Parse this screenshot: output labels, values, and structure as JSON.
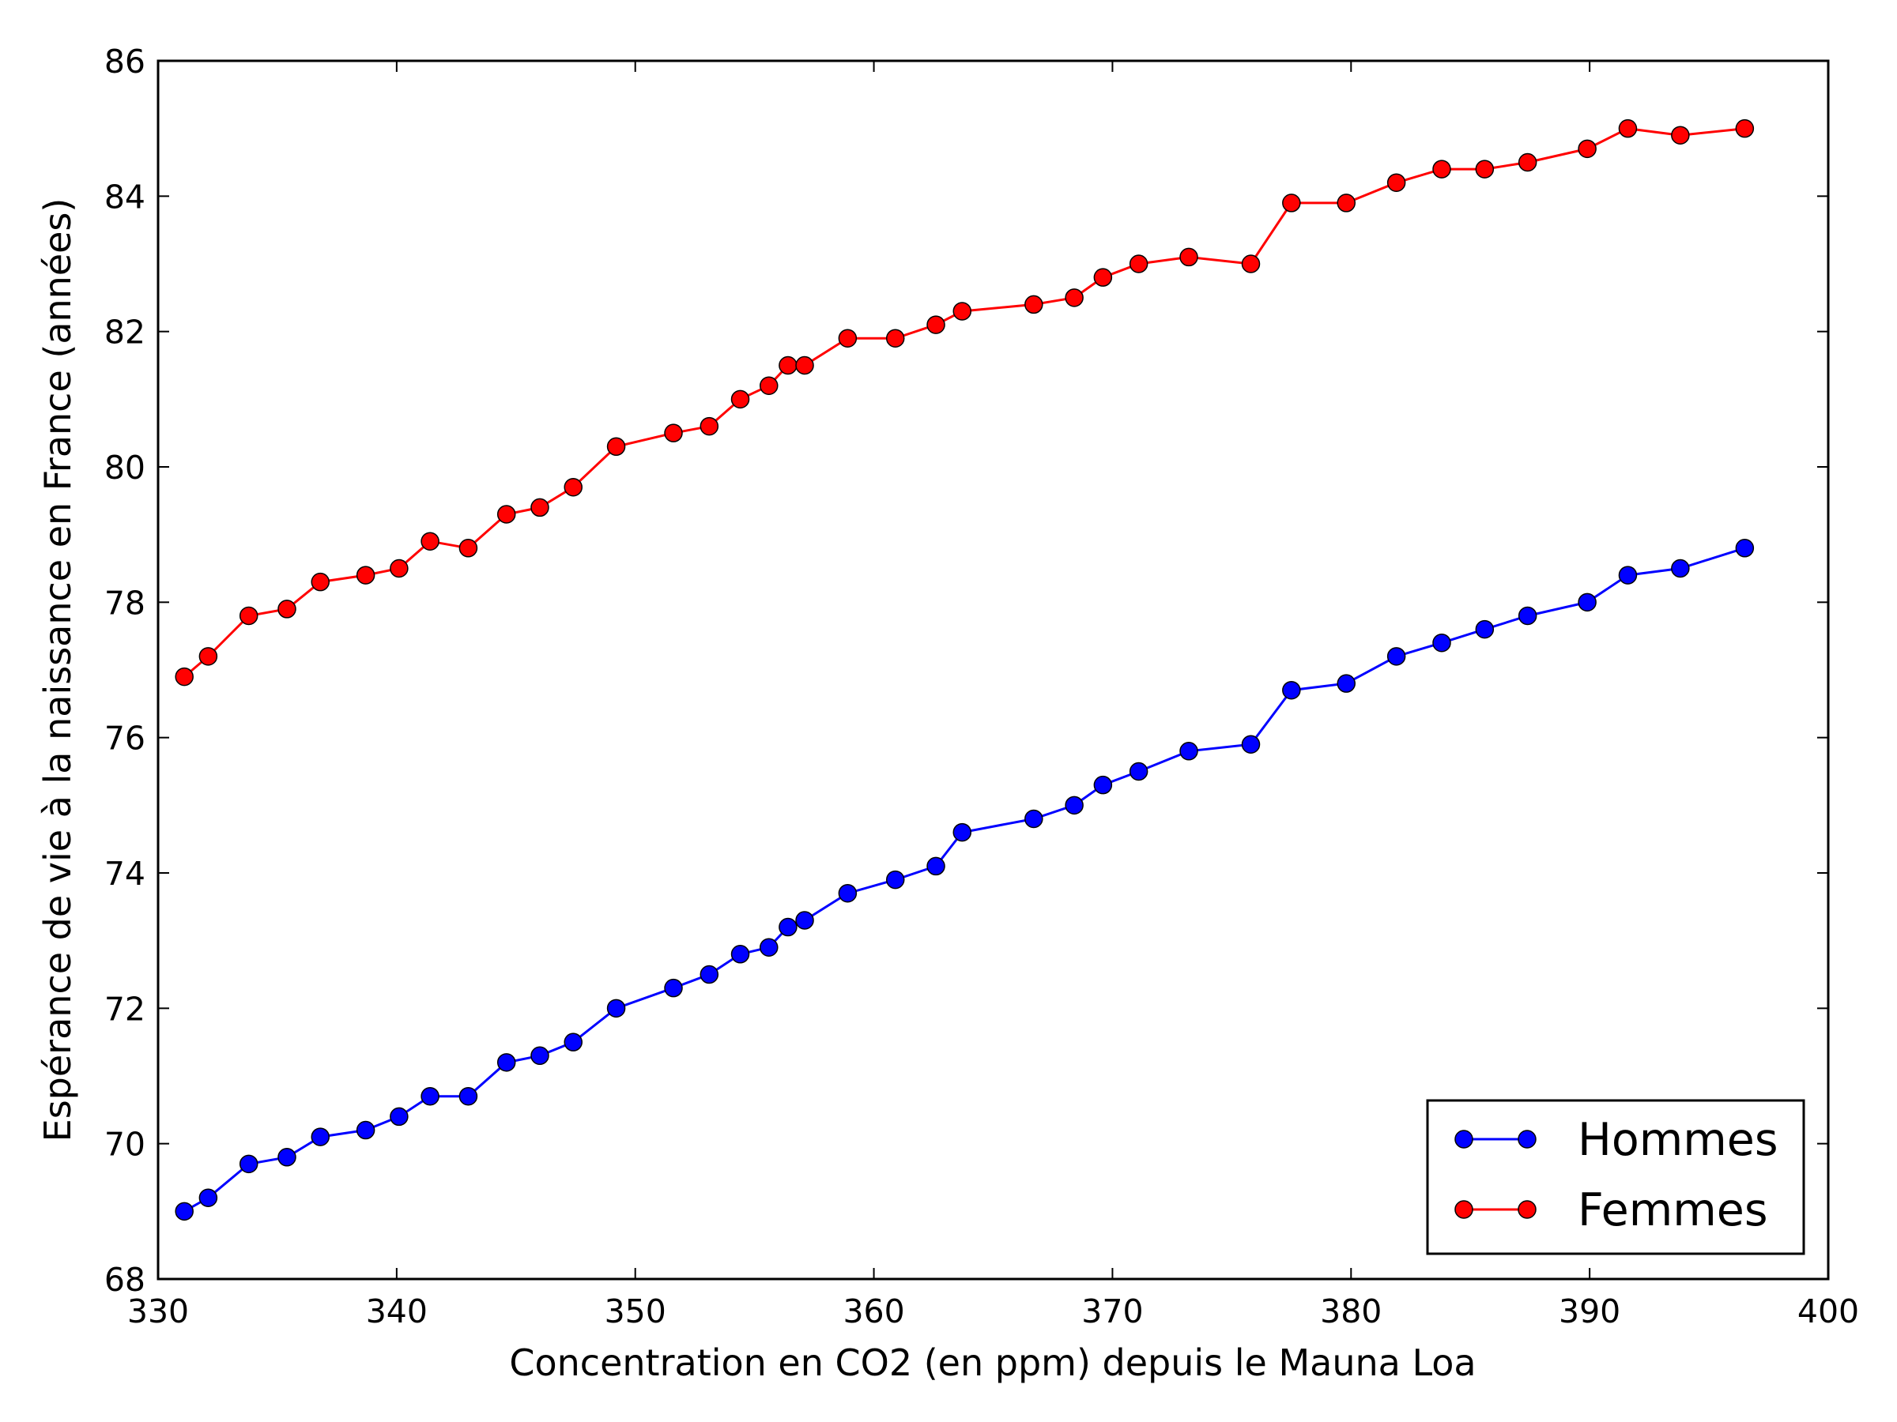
{
  "chart_data": {
    "type": "line",
    "title": "",
    "xlabel": "Concentration en CO2 (en ppm) depuis le Mauna Loa",
    "ylabel": "Espérance de vie à la naissance en France (années)",
    "xlim": [
      330,
      400
    ],
    "ylim": [
      68,
      86
    ],
    "xticks": [
      330,
      340,
      350,
      360,
      370,
      380,
      390,
      400
    ],
    "yticks": [
      68,
      70,
      72,
      74,
      76,
      78,
      80,
      82,
      84,
      86
    ],
    "grid": false,
    "legend_position": "lower-right",
    "x": [
      331.1,
      332.1,
      333.8,
      335.4,
      336.8,
      338.7,
      340.1,
      341.4,
      343.0,
      344.6,
      346.0,
      347.4,
      349.2,
      351.6,
      353.1,
      354.4,
      355.6,
      356.4,
      357.1,
      358.9,
      360.9,
      362.6,
      363.7,
      366.7,
      368.4,
      369.6,
      371.1,
      373.2,
      375.8,
      377.5,
      379.8,
      381.9,
      383.8,
      385.6,
      387.4,
      389.9,
      391.6,
      393.8,
      396.5
    ],
    "series": [
      {
        "name": "Hommes",
        "color": "#0000ff",
        "values": [
          69.0,
          69.2,
          69.7,
          69.8,
          70.1,
          70.2,
          70.4,
          70.7,
          70.7,
          71.2,
          71.3,
          71.5,
          72.0,
          72.3,
          72.5,
          72.8,
          72.9,
          73.2,
          73.3,
          73.7,
          73.9,
          74.1,
          74.6,
          74.8,
          75.0,
          75.3,
          75.5,
          75.8,
          75.9,
          76.7,
          76.8,
          77.2,
          77.4,
          77.6,
          77.8,
          78.0,
          78.4,
          78.5,
          78.8
        ]
      },
      {
        "name": "Femmes",
        "color": "#ff0000",
        "values": [
          76.9,
          77.2,
          77.8,
          77.9,
          78.3,
          78.4,
          78.5,
          78.9,
          78.8,
          79.3,
          79.4,
          79.7,
          80.3,
          80.5,
          80.6,
          81.0,
          81.2,
          81.5,
          81.5,
          81.9,
          81.9,
          82.1,
          82.3,
          82.4,
          82.5,
          82.8,
          83.0,
          83.1,
          83.0,
          83.9,
          83.9,
          84.2,
          84.4,
          84.4,
          84.5,
          84.7,
          85.0,
          84.9,
          85.0
        ]
      }
    ]
  }
}
